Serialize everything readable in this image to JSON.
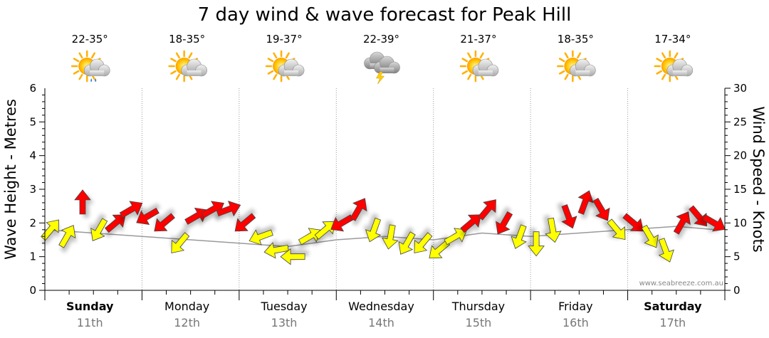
{
  "chart_data": {
    "type": "line",
    "title": "7 day wind & wave forecast for Peak Hill",
    "ylabel_left": "Wave Height - Metres",
    "ylabel_right": "Wind Speed - Knots",
    "ylim_left": [
      0,
      6
    ],
    "ylim_right": [
      0,
      30
    ],
    "yticks_left": [
      "0",
      "1",
      "2",
      "3",
      "4",
      "5",
      "6"
    ],
    "yticks_right": [
      "0",
      "5",
      "10",
      "15",
      "20",
      "25",
      "30"
    ],
    "grid": true,
    "watermark": "www.seabreeze.com.au",
    "days": [
      {
        "name": "Sunday",
        "date": "11th",
        "temp": "22-35°",
        "icon": "sun-cloud-rain-icon",
        "bold": true
      },
      {
        "name": "Monday",
        "date": "12th",
        "temp": "18-35°",
        "icon": "sun-cloud-icon",
        "bold": false
      },
      {
        "name": "Tuesday",
        "date": "13th",
        "temp": "19-37°",
        "icon": "sun-cloud-icon",
        "bold": false
      },
      {
        "name": "Wednesday",
        "date": "14th",
        "temp": "22-39°",
        "icon": "storm-icon",
        "bold": false
      },
      {
        "name": "Thursday",
        "date": "15th",
        "temp": "21-37°",
        "icon": "sun-cloud-icon",
        "bold": false
      },
      {
        "name": "Friday",
        "date": "16th",
        "temp": "18-35°",
        "icon": "sun-cloud-icon",
        "bold": false
      },
      {
        "name": "Saturday",
        "date": "17th",
        "temp": "17-34°",
        "icon": "sun-cloud-icon",
        "bold": true
      }
    ],
    "colors": {
      "strong": "#ff0000",
      "moderate": "#ffff00",
      "outline": "#444444",
      "grid": "#999999"
    },
    "series": [
      {
        "name": "Wind Speed (knots)",
        "unit": "knots",
        "x_days": [
          0.0,
          0.17,
          0.33,
          0.5,
          0.67,
          0.83,
          1.0,
          1.17,
          1.33,
          1.5,
          1.67,
          1.83,
          2.0,
          2.17,
          2.33,
          2.5,
          2.67,
          2.83,
          3.0,
          3.17,
          3.33,
          3.5,
          3.67,
          3.83,
          4.0,
          4.17,
          4.33,
          4.5,
          4.67,
          4.83,
          5.0,
          5.17,
          5.33,
          5.5,
          5.67,
          5.83,
          6.0,
          6.17,
          6.33,
          6.5,
          6.67,
          6.83
        ],
        "values": [
          9,
          8,
          13,
          9,
          10,
          12,
          11,
          10,
          7,
          11,
          12,
          12,
          10,
          8,
          6,
          5,
          8,
          9,
          10,
          12,
          9,
          8,
          7,
          7,
          6,
          8,
          10,
          12,
          10,
          8,
          7,
          9,
          11,
          13,
          12,
          9,
          10,
          8,
          6,
          10,
          11,
          10
        ],
        "directions_deg": [
          40,
          30,
          0,
          210,
          50,
          60,
          240,
          230,
          220,
          60,
          60,
          70,
          230,
          250,
          260,
          270,
          60,
          50,
          240,
          30,
          200,
          190,
          210,
          220,
          230,
          60,
          50,
          40,
          210,
          200,
          180,
          170,
          160,
          20,
          150,
          140,
          130,
          150,
          160,
          30,
          140,
          120
        ]
      },
      {
        "name": "Wave Height (m)",
        "unit": "m",
        "x_days": [
          0.0,
          0.5,
          1.0,
          1.5,
          2.0,
          2.5,
          3.0,
          3.5,
          4.0,
          4.5,
          5.0,
          5.5,
          6.0,
          6.5,
          6.9
        ],
        "values": [
          1.8,
          1.7,
          1.6,
          1.5,
          1.4,
          1.3,
          1.5,
          1.6,
          1.5,
          1.7,
          1.6,
          1.7,
          1.8,
          1.9,
          1.8
        ]
      }
    ]
  }
}
